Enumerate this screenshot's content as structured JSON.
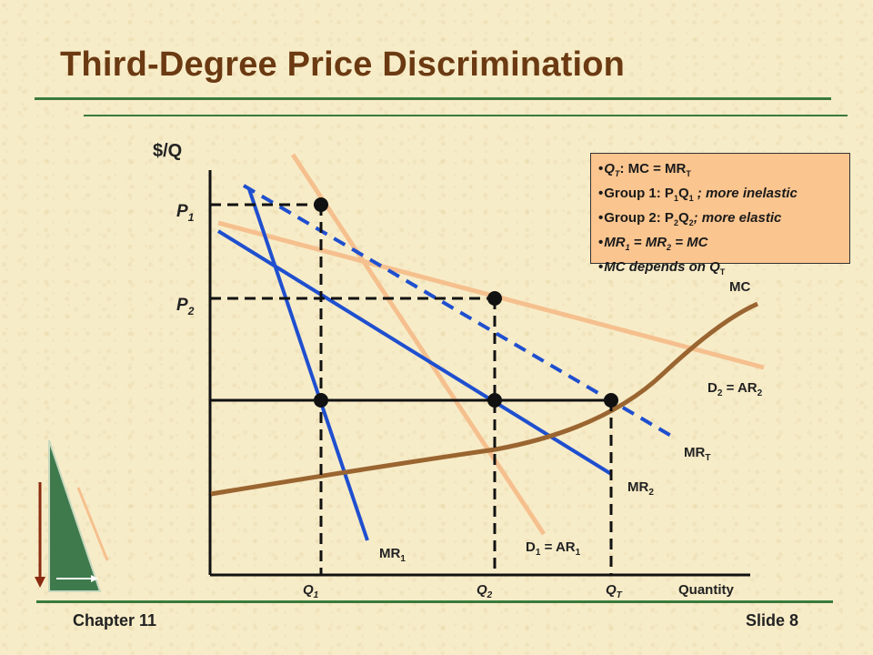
{
  "slide": {
    "title": "Third-Degree Price Discrimination",
    "footer_left": "Chapter 11",
    "footer_right": "Slide 8"
  },
  "colors": {
    "title": "#6b3a12",
    "rules": "#3a7a3a",
    "demand_curves": "#f5c08e",
    "marginal_revenue": "#1f4fcf",
    "marginal_cost": "#9a6530",
    "notes_background": "#fbc58f"
  },
  "diagram": {
    "y_axis_label": "$/Q",
    "x_axis_label": "Quantity",
    "price_labels": [
      {
        "main": "P",
        "sub": "1"
      },
      {
        "main": "P",
        "sub": "2"
      }
    ],
    "quantity_labels": [
      {
        "main": "Q",
        "sub": "1"
      },
      {
        "main": "Q",
        "sub": "2"
      },
      {
        "main": "Q",
        "sub": "T"
      }
    ],
    "curve_labels": {
      "mc": "MC",
      "d2": {
        "main": "D",
        "sub1": "2",
        "mid": " = AR",
        "sub2": "2"
      },
      "mrt": {
        "main": "MR",
        "sub": "T"
      },
      "mr2": {
        "main": "MR",
        "sub": "2"
      },
      "d1": {
        "main": "D",
        "sub1": "1",
        "mid": " = AR",
        "sub2": "1"
      },
      "mr1": {
        "main": "MR",
        "sub": "1"
      }
    },
    "curves": [
      "D1 = AR1",
      "D2 = AR2",
      "MR1",
      "MR2",
      "MRT",
      "MC"
    ]
  },
  "notes": [
    {
      "a": "Q",
      "a_sub": "T",
      "b": ": MC = MR",
      "b_sub": "T",
      "c": ""
    },
    {
      "a": "Group 1: P",
      "a_sub": "1",
      "b": "Q",
      "b_sub": "1",
      "c": " ; more inelastic"
    },
    {
      "a": "Group 2: P",
      "a_sub": "2",
      "b": "Q",
      "b_sub": "2",
      "c": "; more elastic"
    },
    {
      "a": "MR",
      "a_sub": "1",
      "b": " = MR",
      "b_sub": "2",
      "c": " = MC"
    },
    {
      "a": "MC depends on Q",
      "a_sub": "T",
      "b": "",
      "b_sub": "",
      "c": ""
    }
  ]
}
